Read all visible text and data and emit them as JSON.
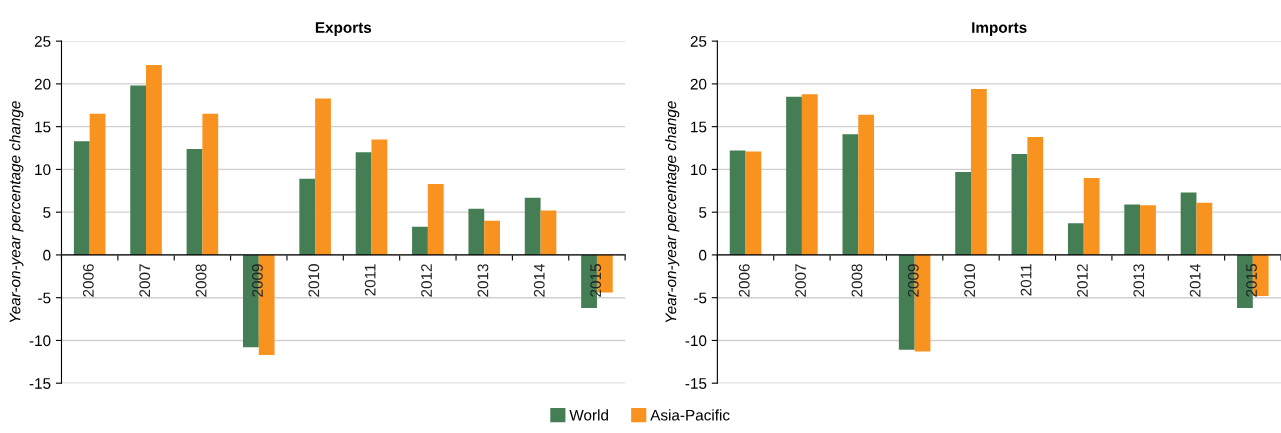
{
  "chart_data": [
    {
      "type": "bar",
      "title": "Exports",
      "ylabel": "Year-on-year percentage change",
      "categories": [
        "2006",
        "2007",
        "2008",
        "2009",
        "2010",
        "2011",
        "2012",
        "2013",
        "2014",
        "2015"
      ],
      "series": [
        {
          "name": "World",
          "color": "#457e54",
          "values": [
            13.3,
            19.8,
            12.4,
            -10.8,
            8.9,
            12.0,
            3.3,
            5.4,
            6.7,
            -6.2
          ]
        },
        {
          "name": "Asia-Pacific",
          "color": "#f7931e",
          "values": [
            16.5,
            22.2,
            16.5,
            -11.7,
            18.3,
            13.5,
            8.3,
            4.0,
            5.2,
            -4.4
          ]
        }
      ],
      "ylim": [
        -15,
        25
      ],
      "yticks": [
        -15,
        -10,
        -5,
        0,
        5,
        10,
        15,
        20,
        25
      ],
      "grid": "y",
      "legend": "bottom"
    },
    {
      "type": "bar",
      "title": "Imports",
      "ylabel": "Year-on-year percentage change",
      "categories": [
        "2006",
        "2007",
        "2008",
        "2009",
        "2010",
        "2011",
        "2012",
        "2013",
        "2014",
        "2015"
      ],
      "series": [
        {
          "color": "#457e54",
          "values": [
            12.2,
            18.5,
            14.1,
            -11.1,
            9.7,
            11.8,
            3.7,
            5.9,
            7.3,
            -6.2
          ]
        },
        {
          "color": "#f7931e",
          "values": [
            12.1,
            18.8,
            16.4,
            -11.3,
            19.4,
            13.8,
            9.0,
            5.8,
            6.1,
            -4.8
          ]
        }
      ],
      "ylim": [
        -15,
        25
      ],
      "yticks": [
        -15,
        -10,
        -5,
        0,
        5,
        10,
        15,
        20,
        25
      ],
      "grid": "y"
    }
  ]
}
